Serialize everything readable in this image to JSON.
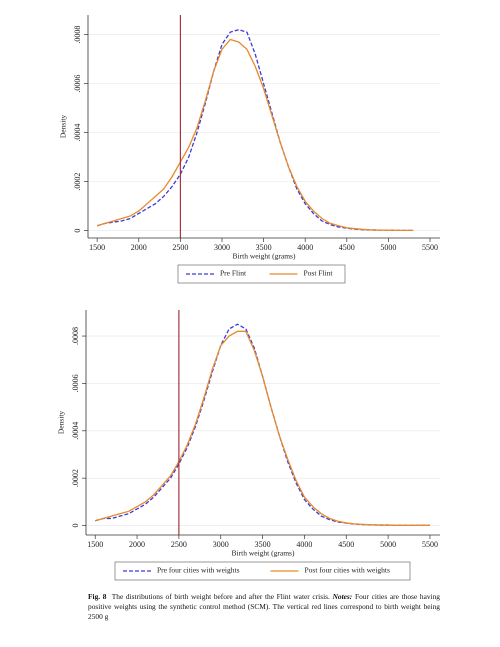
{
  "chart_data": [
    {
      "type": "line",
      "x_label": "Birth weight (grams)",
      "y_label": "Density",
      "x": [
        1500,
        1600,
        1700,
        1800,
        1900,
        2000,
        2100,
        2200,
        2300,
        2400,
        2500,
        2600,
        2700,
        2800,
        2900,
        3000,
        3100,
        3200,
        3300,
        3400,
        3500,
        3600,
        3700,
        3800,
        3900,
        4000,
        4100,
        4200,
        4300,
        4400,
        4500,
        4600,
        4700,
        4800,
        4900,
        5000,
        5100,
        5200,
        5300
      ],
      "series": [
        {
          "name": "Pre Flint",
          "color": "#3b3bd6",
          "line_style": "dashed",
          "values": [
            2e-05,
            3e-05,
            3.5e-05,
            4e-05,
            5e-05,
            7e-05,
            9e-05,
            0.00011,
            0.00014,
            0.00018,
            0.00023,
            0.0003,
            0.0004,
            0.00052,
            0.00065,
            0.00076,
            0.00081,
            0.00082,
            0.00081,
            0.00072,
            0.0006,
            0.00048,
            0.00036,
            0.00026,
            0.00017,
            0.00011,
            7e-05,
            4e-05,
            2.5e-05,
            1.5e-05,
            1e-05,
            6e-06,
            4e-06,
            3e-06,
            2e-06,
            2e-06,
            1e-06,
            1e-06,
            1e-06
          ]
        },
        {
          "name": "Post Flint",
          "color": "#e8892c",
          "line_style": "solid",
          "values": [
            2e-05,
            3e-05,
            4e-05,
            5e-05,
            6e-05,
            8e-05,
            0.00011,
            0.00014,
            0.00017,
            0.00022,
            0.00028,
            0.00034,
            0.00042,
            0.00053,
            0.00065,
            0.00074,
            0.00078,
            0.00077,
            0.00074,
            0.00067,
            0.00058,
            0.00047,
            0.00036,
            0.00026,
            0.00018,
            0.00012,
            8e-05,
            5e-05,
            3e-05,
            2e-05,
            1.2e-05,
            8e-06,
            5e-06,
            3e-06,
            2e-06,
            2e-06,
            1e-06,
            1e-06,
            1e-06
          ]
        }
      ],
      "vline": 2500,
      "vline_color": "#a0272d",
      "xlim": [
        1390,
        5620
      ],
      "xticks": [
        1500,
        2000,
        2500,
        3000,
        3500,
        4000,
        4500,
        5000,
        5500
      ],
      "ylim": [
        -3e-05,
        0.00088
      ],
      "yticks": [
        0,
        {
          "value": 0.0002,
          "label": ".0002"
        },
        {
          "value": 0.0004,
          "label": ".0004"
        },
        {
          "value": 0.0006,
          "label": ".0006"
        },
        {
          "value": 0.0008,
          "label": ".0008"
        }
      ],
      "grid": true,
      "legend": "bottom"
    },
    {
      "type": "line",
      "x_label": "Birth weight (grams)",
      "y_label": "Density",
      "x": [
        1500,
        1600,
        1700,
        1800,
        1900,
        2000,
        2100,
        2200,
        2300,
        2400,
        2500,
        2600,
        2700,
        2800,
        2900,
        3000,
        3100,
        3200,
        3300,
        3400,
        3500,
        3600,
        3700,
        3800,
        3900,
        4000,
        4100,
        4200,
        4300,
        4400,
        4500,
        4600,
        4700,
        4800,
        4900,
        5000,
        5100,
        5200,
        5300,
        5400,
        5500
      ],
      "series": [
        {
          "name": "Pre four cities with weights",
          "color": "#3b3bd6",
          "line_style": "dashed",
          "values": [
            2e-05,
            3e-05,
            3e-05,
            4e-05,
            5e-05,
            7e-05,
            9e-05,
            0.00012,
            0.00016,
            0.0002,
            0.00026,
            0.00033,
            0.00042,
            0.00053,
            0.00065,
            0.00076,
            0.00083,
            0.00085,
            0.00083,
            0.00075,
            0.00063,
            0.0005,
            0.00038,
            0.00027,
            0.00018,
            0.00011,
            7e-05,
            4e-05,
            2.5e-05,
            1.5e-05,
            1e-05,
            6e-06,
            4e-06,
            3e-06,
            2e-06,
            2e-06,
            1e-06,
            1e-06,
            1e-06,
            1e-06,
            1e-06
          ]
        },
        {
          "name": "Post four cities with weights",
          "color": "#e8892c",
          "line_style": "solid",
          "values": [
            2e-05,
            3e-05,
            4e-05,
            5e-05,
            6e-05,
            8e-05,
            0.0001,
            0.00013,
            0.00017,
            0.00021,
            0.00027,
            0.00034,
            0.00043,
            0.00054,
            0.00066,
            0.00076,
            0.0008,
            0.00082,
            0.00082,
            0.00074,
            0.00063,
            0.0005,
            0.00038,
            0.00028,
            0.00019,
            0.00012,
            8e-05,
            5e-05,
            3e-05,
            1.8e-05,
            1.1e-05,
            7e-06,
            5e-06,
            3e-06,
            2e-06,
            2e-06,
            1e-06,
            1e-06,
            1e-06,
            1e-06,
            1e-06
          ]
        }
      ],
      "vline": 2500,
      "vline_color": "#a0272d",
      "xlim": [
        1390,
        5620
      ],
      "xticks": [
        1500,
        2000,
        2500,
        3000,
        3500,
        4000,
        4500,
        5000,
        5500
      ],
      "ylim": [
        -4e-05,
        0.00091
      ],
      "yticks": [
        0,
        {
          "value": 0.0002,
          "label": ".0002"
        },
        {
          "value": 0.0004,
          "label": ".0004"
        },
        {
          "value": 0.0006,
          "label": ".0006"
        },
        {
          "value": 0.0008,
          "label": ".0008"
        }
      ],
      "grid": true,
      "legend": "bottom"
    }
  ],
  "caption": {
    "label": "Fig. 8",
    "text": "The distributions of birth weight before and after the Flint water crisis.",
    "notes_label": "Notes:",
    "notes": "Four cities are those having positive weights using the synthetic control method (SCM). The vertical red lines correspond to birth weight being 2500 g"
  }
}
